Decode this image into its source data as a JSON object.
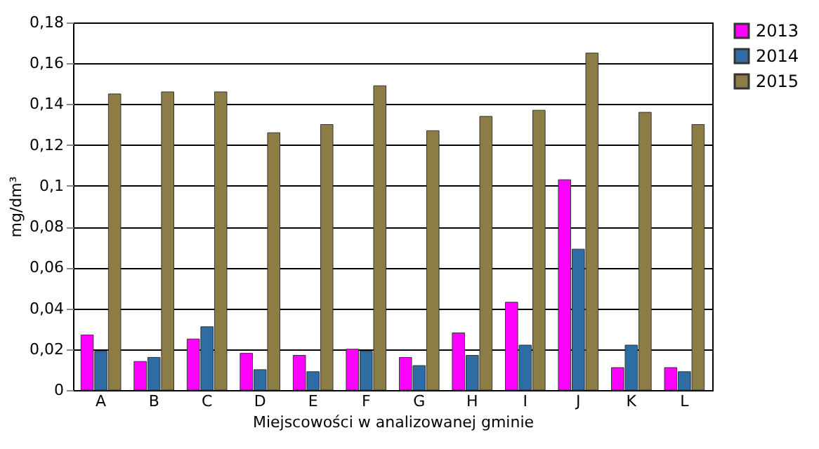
{
  "chart_data": {
    "type": "bar",
    "xlabel": "Miejscowości w analizowanej gminie",
    "ylabel": "mg/dm³",
    "categories": [
      "A",
      "B",
      "C",
      "D",
      "E",
      "F",
      "G",
      "H",
      "I",
      "J",
      "K",
      "L"
    ],
    "series": [
      {
        "name": "2013",
        "color": "#ff00ff",
        "values": [
          0.027,
          0.014,
          0.025,
          0.018,
          0.017,
          0.02,
          0.016,
          0.028,
          0.043,
          0.103,
          0.011,
          0.011
        ]
      },
      {
        "name": "2014",
        "color": "#2e6ca4",
        "values": [
          0.019,
          0.016,
          0.031,
          0.01,
          0.009,
          0.019,
          0.012,
          0.017,
          0.022,
          0.069,
          0.022,
          0.009
        ]
      },
      {
        "name": "2015",
        "color": "#8b7d45",
        "values": [
          0.145,
          0.146,
          0.146,
          0.126,
          0.13,
          0.149,
          0.127,
          0.134,
          0.137,
          0.165,
          0.136,
          0.13
        ]
      }
    ],
    "ylim": [
      0,
      0.18
    ],
    "yticks": [
      {
        "value": 0,
        "label": "0"
      },
      {
        "value": 0.02,
        "label": "0,02"
      },
      {
        "value": 0.04,
        "label": "0,04"
      },
      {
        "value": 0.06,
        "label": "0,06"
      },
      {
        "value": 0.08,
        "label": "0,08"
      },
      {
        "value": 0.1,
        "label": "0,1"
      },
      {
        "value": 0.12,
        "label": "0,12"
      },
      {
        "value": 0.14,
        "label": "0,14"
      },
      {
        "value": 0.16,
        "label": "0,16"
      },
      {
        "value": 0.18,
        "label": "0,18"
      }
    ],
    "grid": "y",
    "legend": "right"
  }
}
